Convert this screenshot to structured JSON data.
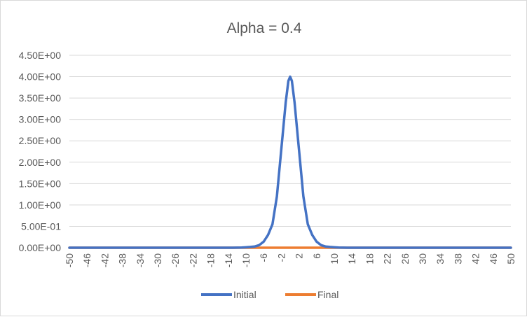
{
  "chart_data": {
    "type": "line",
    "title": "Alpha = 0.4",
    "xlabel": "",
    "ylabel": "",
    "x_tick_labels": [
      "-50",
      "-46",
      "-42",
      "-38",
      "-34",
      "-30",
      "-26",
      "-22",
      "-18",
      "-14",
      "-10",
      "-6",
      "-2",
      "2",
      "6",
      "10",
      "14",
      "18",
      "22",
      "26",
      "30",
      "34",
      "38",
      "42",
      "46",
      "50"
    ],
    "y_tick_labels": [
      "0.00E+00",
      "5.00E-01",
      "1.00E+00",
      "1.50E+00",
      "2.00E+00",
      "2.50E+00",
      "3.00E+00",
      "3.50E+00",
      "4.00E+00",
      "4.50E+00"
    ],
    "xlim": [
      -50,
      50
    ],
    "ylim": [
      0,
      4.5
    ],
    "grid": "horizontal",
    "legend": "bottom",
    "series": [
      {
        "name": "Initial",
        "color": "#4472c4",
        "points": [
          [
            -50,
            0
          ],
          [
            -13,
            0
          ],
          [
            -12,
            0.001
          ],
          [
            -11,
            0.004
          ],
          [
            -10,
            0.01
          ],
          [
            -9,
            0.018
          ],
          [
            -8,
            0.03
          ],
          [
            -7,
            0.06
          ],
          [
            -6,
            0.14
          ],
          [
            -5,
            0.3
          ],
          [
            -4,
            0.55
          ],
          [
            -3,
            1.2
          ],
          [
            -2,
            2.3
          ],
          [
            -1,
            3.4
          ],
          [
            -0.4,
            3.9
          ],
          [
            0,
            4.0
          ],
          [
            0.4,
            3.9
          ],
          [
            1,
            3.4
          ],
          [
            2,
            2.3
          ],
          [
            3,
            1.2
          ],
          [
            4,
            0.55
          ],
          [
            5,
            0.3
          ],
          [
            6,
            0.14
          ],
          [
            7,
            0.06
          ],
          [
            8,
            0.03
          ],
          [
            9,
            0.018
          ],
          [
            10,
            0.01
          ],
          [
            11,
            0.004
          ],
          [
            12,
            0.001
          ],
          [
            13,
            0
          ],
          [
            50,
            0
          ]
        ]
      },
      {
        "name": "Final",
        "color": "#ed7d31",
        "points": [
          [
            -50,
            0
          ],
          [
            50,
            0
          ]
        ]
      }
    ]
  }
}
